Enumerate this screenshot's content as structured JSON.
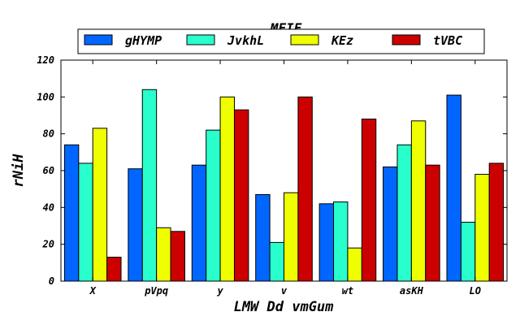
{
  "chart_data": {
    "type": "bar",
    "title": "MFIF",
    "xlabel": "LMW Dd vmGum",
    "ylabel": "rNiH",
    "ylim": [
      0,
      120
    ],
    "yticks": [
      0,
      20,
      40,
      60,
      80,
      100,
      120
    ],
    "categories": [
      "X",
      "pVpq",
      "y",
      "v",
      "wt",
      "asKH",
      "LO"
    ],
    "legend_position": "top-center",
    "grid": false,
    "series": [
      {
        "name": "gHYMP",
        "color": "#0066ff",
        "values": [
          74,
          61,
          63,
          47,
          42,
          62,
          101
        ]
      },
      {
        "name": "JvkhL",
        "color": "#29ffcc",
        "values": [
          64,
          104,
          82,
          21,
          43,
          74,
          32
        ]
      },
      {
        "name": "KEz",
        "color": "#f0ff00",
        "values": [
          83,
          29,
          100,
          48,
          18,
          87,
          58
        ]
      },
      {
        "name": "tVBC",
        "color": "#cc0000",
        "values": [
          13,
          27,
          93,
          100,
          88,
          63,
          64
        ]
      }
    ]
  }
}
